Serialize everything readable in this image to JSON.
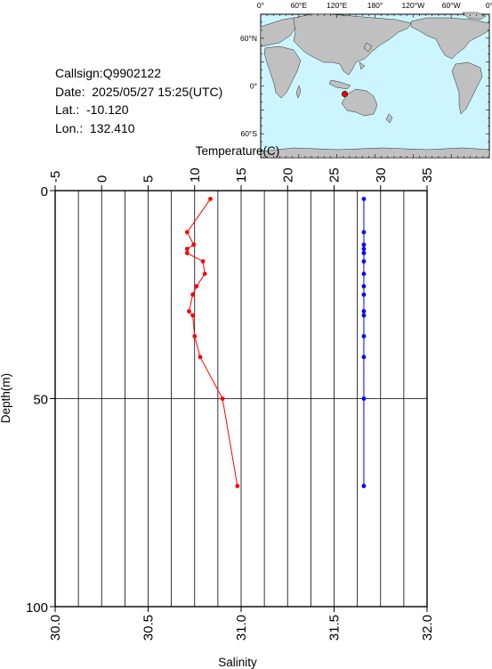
{
  "station": {
    "callsign_label": "Callsign:Q9902122",
    "date_label": "Date:  2025/05/27 15:25(UTC)",
    "lat_label": "Lat.:  -10.120",
    "lon_label": "Lon.:  132.410"
  },
  "map": {
    "lon_labels": [
      "0°",
      "60°E",
      "120°E",
      "180°",
      "120°W",
      "60°W",
      "0°"
    ],
    "lat_labels": [
      "60°N",
      "0°",
      "60°S"
    ],
    "station_lat": -10.12,
    "station_lon": 132.41,
    "colors": {
      "ocean": "#ccf5ff",
      "land": "#c0c0c0",
      "marker": "#ff0000"
    }
  },
  "chart_data": {
    "type": "line",
    "title": "",
    "top_axis": {
      "label": "Temperature(C)",
      "range": [
        -5,
        35
      ],
      "ticks": [
        "-5",
        "0",
        "5",
        "10",
        "15",
        "20",
        "25",
        "30",
        "35"
      ]
    },
    "bottom_axis": {
      "label": "Salinity",
      "range": [
        30.0,
        32.0
      ],
      "ticks": [
        "30.0",
        "30.5",
        "31.0",
        "31.5",
        "32.0"
      ]
    },
    "y_axis": {
      "label": "Depth(m)",
      "range": [
        0,
        100
      ],
      "inverted": true,
      "ticks": [
        "0",
        "50",
        "100"
      ]
    },
    "grid": true,
    "series": [
      {
        "color": "#ff0000",
        "axis": "temperature",
        "points": [
          {
            "depth": 2,
            "value": 11.7
          },
          {
            "depth": 10,
            "value": 9.2
          },
          {
            "depth": 13,
            "value": 9.9
          },
          {
            "depth": 14,
            "value": 9.2
          },
          {
            "depth": 15,
            "value": 9.2
          },
          {
            "depth": 17,
            "value": 10.9
          },
          {
            "depth": 20,
            "value": 11.1
          },
          {
            "depth": 23,
            "value": 10.2
          },
          {
            "depth": 25,
            "value": 9.8
          },
          {
            "depth": 29,
            "value": 9.4
          },
          {
            "depth": 30,
            "value": 9.8
          },
          {
            "depth": 35,
            "value": 10.0
          },
          {
            "depth": 40,
            "value": 10.6
          },
          {
            "depth": 50,
            "value": 13.0
          },
          {
            "depth": 71,
            "value": 14.6
          }
        ]
      },
      {
        "color": "#0000ff",
        "axis": "salinity",
        "points": [
          {
            "depth": 2,
            "value": 31.66
          },
          {
            "depth": 10,
            "value": 31.66
          },
          {
            "depth": 13,
            "value": 31.66
          },
          {
            "depth": 14,
            "value": 31.66
          },
          {
            "depth": 15,
            "value": 31.66
          },
          {
            "depth": 17,
            "value": 31.66
          },
          {
            "depth": 20,
            "value": 31.66
          },
          {
            "depth": 23,
            "value": 31.66
          },
          {
            "depth": 25,
            "value": 31.66
          },
          {
            "depth": 29,
            "value": 31.66
          },
          {
            "depth": 30,
            "value": 31.66
          },
          {
            "depth": 35,
            "value": 31.66
          },
          {
            "depth": 40,
            "value": 31.66
          },
          {
            "depth": 50,
            "value": 31.66
          },
          {
            "depth": 71,
            "value": 31.66
          }
        ]
      }
    ]
  }
}
